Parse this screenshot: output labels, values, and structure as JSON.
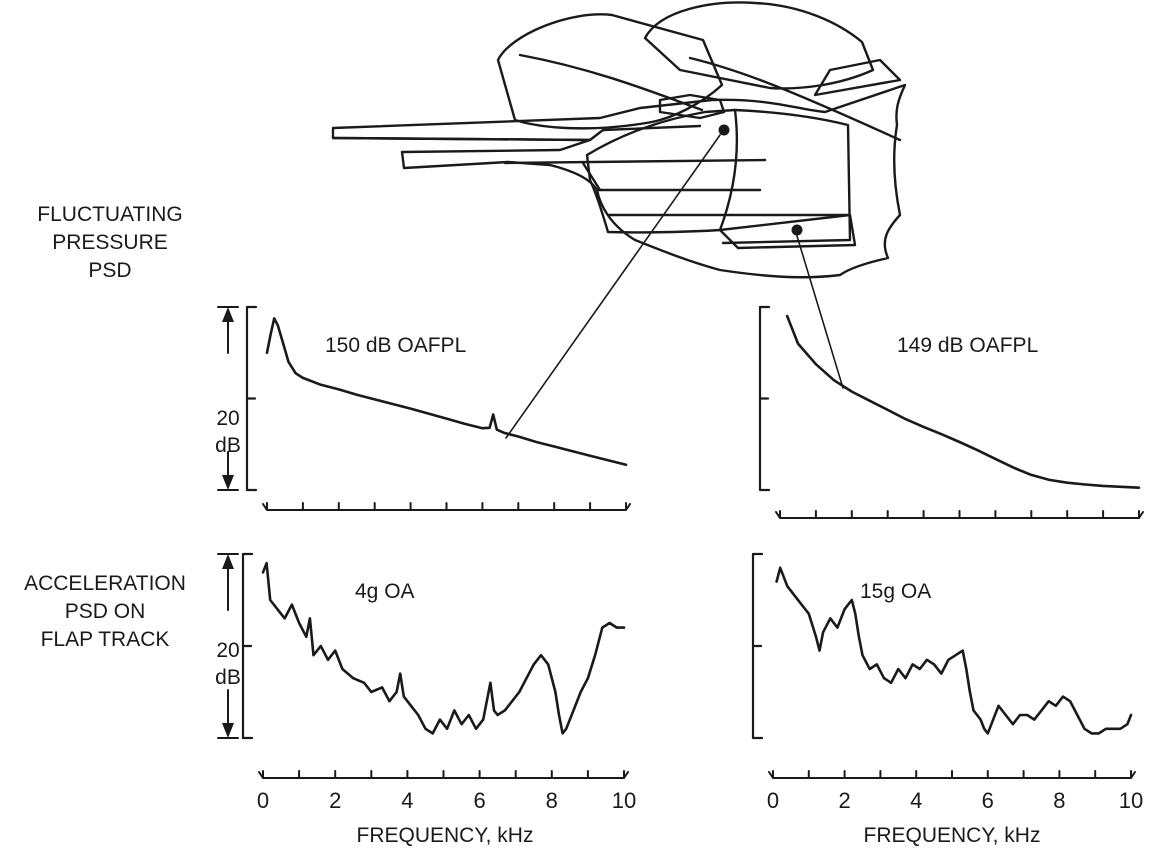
{
  "figure": {
    "left_labels": {
      "pressure": [
        "FLUCTUATING",
        "PRESSURE",
        "PSD"
      ],
      "acceleration": [
        "ACCELERATION",
        "PSD ON",
        "FLAP TRACK"
      ],
      "scale_value": "20",
      "scale_unit": "dB"
    },
    "annotations": {
      "top_left": "150 dB  OAFPL",
      "top_right": "149 dB  OAFPL",
      "bottom_left": "4g  OA",
      "bottom_right": "15g  OA"
    },
    "xlabel": "FREQUENCY, kHz"
  },
  "chart_data": [
    {
      "type": "line",
      "panel": "pressure-left",
      "annotation": "150 dB  OAFPL",
      "xlim": [
        0,
        10
      ],
      "ylim": [
        0,
        40
      ],
      "scale_bar_db": 20,
      "x": [
        0,
        0.1,
        0.2,
        0.3,
        0.45,
        0.6,
        0.8,
        1,
        1.5,
        2,
        2.5,
        3,
        3.5,
        4,
        4.5,
        5,
        5.5,
        6,
        6.2,
        6.3,
        6.4,
        6.6,
        7,
        7.5,
        8,
        8.5,
        9,
        9.5,
        10
      ],
      "y": [
        30,
        34,
        37.5,
        36,
        32,
        28,
        25.5,
        24.5,
        23,
        22,
        20.8,
        19.8,
        18.8,
        17.8,
        16.7,
        15.6,
        14.5,
        13.5,
        13.6,
        16.5,
        13.2,
        12.5,
        11.7,
        10.5,
        9.5,
        8.5,
        7.5,
        6.5,
        5.5
      ]
    },
    {
      "type": "line",
      "panel": "pressure-right",
      "annotation": "149 dB  OAFPL",
      "xlim": [
        0,
        10
      ],
      "ylim": [
        0,
        40
      ],
      "scale_bar_db": 20,
      "x": [
        0.2,
        0.5,
        1,
        1.5,
        2,
        2.5,
        3,
        3.5,
        4,
        4.5,
        5,
        5.5,
        6,
        6.5,
        7,
        7.5,
        8,
        8.5,
        9,
        9.5,
        10
      ],
      "y": [
        38,
        32,
        27.5,
        24,
        21.5,
        19.5,
        17.5,
        15.5,
        13.8,
        12.2,
        10.5,
        8.7,
        6.8,
        4.9,
        3.3,
        2.2,
        1.6,
        1.2,
        0.9,
        0.7,
        0.5
      ]
    },
    {
      "type": "line",
      "panel": "acceleration-left",
      "annotation": "4g  OA",
      "xlim": [
        0,
        10
      ],
      "ylim": [
        0,
        40
      ],
      "scale_bar_db": 20,
      "x": [
        0,
        0.1,
        0.2,
        0.4,
        0.6,
        0.8,
        1,
        1.2,
        1.3,
        1.4,
        1.6,
        1.8,
        2,
        2.2,
        2.5,
        2.8,
        3,
        3.3,
        3.5,
        3.7,
        3.8,
        3.9,
        4.1,
        4.3,
        4.5,
        4.7,
        4.9,
        5.1,
        5.3,
        5.5,
        5.7,
        5.9,
        6.1,
        6.3,
        6.4,
        6.5,
        6.7,
        6.9,
        7.1,
        7.3,
        7.5,
        7.7,
        7.9,
        8.1,
        8.2,
        8.3,
        8.4,
        8.6,
        8.8,
        9,
        9.2,
        9.4,
        9.6,
        9.8,
        10
      ],
      "y": [
        36,
        38,
        30,
        28,
        26,
        29,
        25,
        22,
        26,
        18,
        20,
        17,
        19,
        15,
        13,
        12,
        10,
        11,
        8,
        10,
        14,
        9,
        7,
        5,
        2,
        1,
        4,
        2,
        6,
        3,
        5,
        2,
        4,
        12,
        6,
        5,
        6,
        8,
        10,
        13,
        16,
        18,
        16,
        10,
        5,
        1,
        2,
        6,
        10,
        13,
        18,
        24,
        25,
        24,
        24
      ]
    },
    {
      "type": "line",
      "panel": "acceleration-right",
      "annotation": "15g  OA",
      "xlim": [
        0,
        10
      ],
      "ylim": [
        0,
        40
      ],
      "scale_bar_db": 20,
      "x": [
        0.1,
        0.2,
        0.4,
        0.6,
        0.8,
        1,
        1.2,
        1.3,
        1.4,
        1.6,
        1.8,
        2,
        2.2,
        2.3,
        2.4,
        2.5,
        2.7,
        2.9,
        3.1,
        3.3,
        3.5,
        3.7,
        3.9,
        4.1,
        4.3,
        4.5,
        4.7,
        4.9,
        5.1,
        5.3,
        5.4,
        5.5,
        5.6,
        5.7,
        5.8,
        5.9,
        6,
        6.1,
        6.3,
        6.5,
        6.7,
        6.9,
        7.1,
        7.3,
        7.5,
        7.7,
        7.9,
        8.1,
        8.3,
        8.5,
        8.7,
        8.9,
        9.1,
        9.3,
        9.5,
        9.7,
        9.9,
        10
      ],
      "y": [
        34,
        37,
        33,
        31,
        29,
        27,
        22,
        19,
        23,
        26,
        24,
        28,
        30,
        27,
        22,
        18,
        15,
        16,
        13,
        12,
        15,
        13,
        16,
        15,
        17,
        16,
        14,
        17,
        18,
        19,
        15,
        10,
        6,
        5,
        4,
        2,
        1,
        3,
        7,
        5,
        3,
        5,
        5,
        4,
        6,
        8,
        7,
        9,
        8,
        5,
        2,
        1,
        1,
        2,
        2,
        2,
        3,
        5
      ]
    }
  ]
}
